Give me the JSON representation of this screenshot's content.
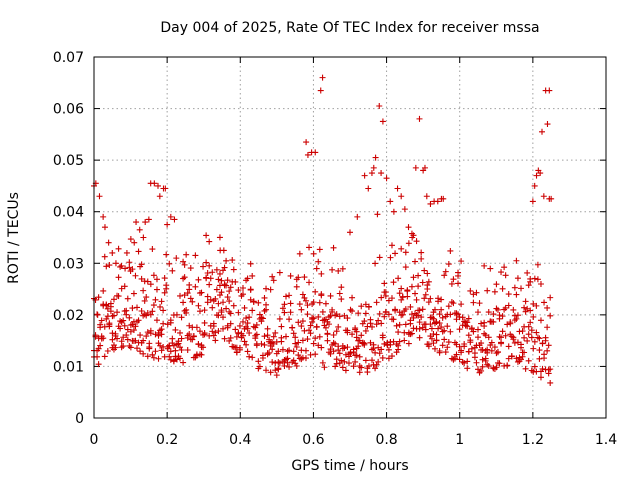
{
  "colors": {
    "series": "#cc0000",
    "grid": "#a0a0a0"
  },
  "chart_data": {
    "type": "scatter",
    "title": "Day 004 of 2025, Rate Of TEC Index for receiver mssa",
    "xlabel": "GPS time / hours",
    "ylabel": "ROTI / TECUs",
    "xlim": [
      0,
      1.4
    ],
    "ylim": [
      0,
      0.07
    ],
    "xticks": [
      0,
      0.2,
      0.4,
      0.6,
      0.8,
      1,
      1.2,
      1.4
    ],
    "xtick_labels": [
      "0",
      "0.2",
      "0.4",
      "0.6",
      "0.8",
      "1",
      "1.2",
      "1.4"
    ],
    "yticks": [
      0,
      0.01,
      0.02,
      0.03,
      0.04,
      0.05,
      0.06,
      0.07
    ],
    "ytick_labels": [
      "0",
      "0.01",
      "0.02",
      "0.03",
      "0.04",
      "0.05",
      "0.06",
      "0.07"
    ],
    "grid": true,
    "marker": "plus",
    "series": [
      {
        "name": "ROTI",
        "points": [
          [
            0.0,
            0.045
          ],
          [
            0.005,
            0.0455
          ],
          [
            0.01,
            0.02
          ],
          [
            0.015,
            0.043
          ],
          [
            0.025,
            0.039
          ],
          [
            0.03,
            0.037
          ],
          [
            0.04,
            0.034
          ],
          [
            0.05,
            0.032
          ],
          [
            0.06,
            0.03
          ],
          [
            0.075,
            0.0295
          ],
          [
            0.085,
            0.029
          ],
          [
            0.09,
            0.032
          ],
          [
            0.1,
            0.0285
          ],
          [
            0.11,
            0.034
          ],
          [
            0.115,
            0.038
          ],
          [
            0.125,
            0.0365
          ],
          [
            0.135,
            0.035
          ],
          [
            0.14,
            0.038
          ],
          [
            0.15,
            0.0385
          ],
          [
            0.155,
            0.0455
          ],
          [
            0.165,
            0.0455
          ],
          [
            0.175,
            0.045
          ],
          [
            0.18,
            0.043
          ],
          [
            0.19,
            0.0445
          ],
          [
            0.195,
            0.0445
          ],
          [
            0.2,
            0.0375
          ],
          [
            0.21,
            0.039
          ],
          [
            0.22,
            0.0385
          ],
          [
            0.225,
            0.031
          ],
          [
            0.345,
            0.0325
          ],
          [
            0.355,
            0.0325
          ],
          [
            0.58,
            0.0535
          ],
          [
            0.585,
            0.051
          ],
          [
            0.595,
            0.0515
          ],
          [
            0.605,
            0.0515
          ],
          [
            0.62,
            0.0635
          ],
          [
            0.625,
            0.066
          ],
          [
            0.655,
            0.033
          ],
          [
            0.7,
            0.036
          ],
          [
            0.72,
            0.039
          ],
          [
            0.74,
            0.047
          ],
          [
            0.75,
            0.0445
          ],
          [
            0.76,
            0.0475
          ],
          [
            0.765,
            0.0485
          ],
          [
            0.77,
            0.0505
          ],
          [
            0.775,
            0.0395
          ],
          [
            0.78,
            0.0605
          ],
          [
            0.785,
            0.0475
          ],
          [
            0.79,
            0.0575
          ],
          [
            0.8,
            0.0465
          ],
          [
            0.81,
            0.042
          ],
          [
            0.82,
            0.04
          ],
          [
            0.83,
            0.0445
          ],
          [
            0.84,
            0.043
          ],
          [
            0.85,
            0.0405
          ],
          [
            0.86,
            0.037
          ],
          [
            0.87,
            0.035
          ],
          [
            0.88,
            0.0485
          ],
          [
            0.89,
            0.058
          ],
          [
            0.9,
            0.048
          ],
          [
            0.905,
            0.0485
          ],
          [
            0.91,
            0.043
          ],
          [
            0.92,
            0.0415
          ],
          [
            0.93,
            0.042
          ],
          [
            0.94,
            0.042
          ],
          [
            0.95,
            0.0425
          ],
          [
            0.955,
            0.0425
          ],
          [
            1.2,
            0.042
          ],
          [
            1.205,
            0.045
          ],
          [
            1.21,
            0.047
          ],
          [
            1.215,
            0.048
          ],
          [
            1.22,
            0.0475
          ],
          [
            1.225,
            0.0555
          ],
          [
            1.23,
            0.043
          ],
          [
            1.235,
            0.0635
          ],
          [
            1.24,
            0.057
          ],
          [
            1.245,
            0.0635
          ],
          [
            1.245,
            0.0425
          ],
          [
            1.25,
            0.0425
          ]
        ]
      }
    ]
  }
}
